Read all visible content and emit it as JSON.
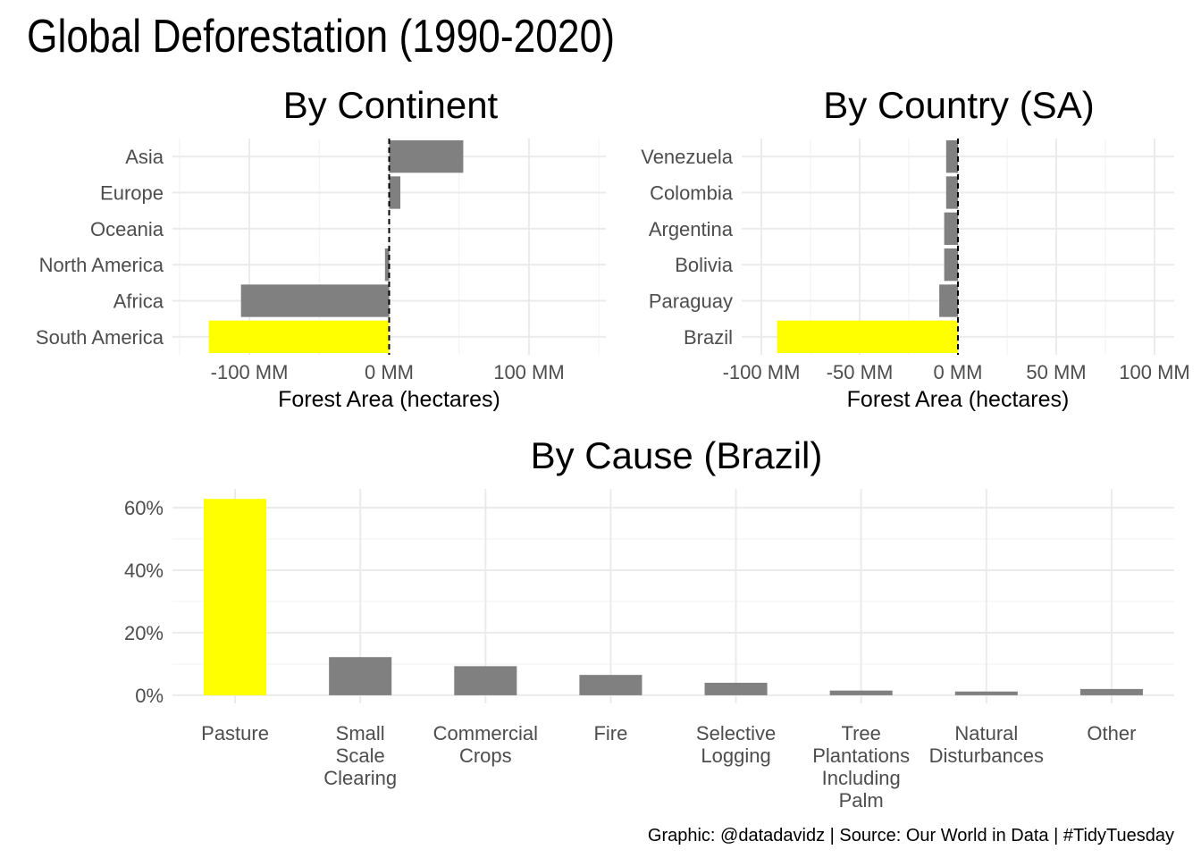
{
  "title": "Global Deforestation (1990-2020)",
  "caption": "Graphic: @datadavidz | Source: Our World in Data | #TidyTuesday",
  "colors": {
    "highlight": "#ffff00",
    "base": "#808080",
    "zero_line": "#000000"
  },
  "chart_data": [
    {
      "type": "bar",
      "orientation": "horizontal",
      "title": "By Continent",
      "xlabel": "Forest Area (hectares)",
      "ylabel": "",
      "xlim": [
        -155,
        155
      ],
      "xticks": [
        {
          "value": -100,
          "label": "-100 MM"
        },
        {
          "value": 0,
          "label": "0 MM"
        },
        {
          "value": 100,
          "label": "100 MM"
        }
      ],
      "categories": [
        "South America",
        "Africa",
        "North America",
        "Oceania",
        "Europe",
        "Asia"
      ],
      "values": [
        -129,
        -106,
        -3,
        0,
        8,
        53
      ],
      "highlight": [
        "South America"
      ],
      "zero_line": true,
      "grid": true
    },
    {
      "type": "bar",
      "orientation": "horizontal",
      "title": "By Country (SA)",
      "xlabel": "Forest Area (hectares)",
      "ylabel": "",
      "xlim": [
        -110,
        110
      ],
      "xticks": [
        {
          "value": -100,
          "label": "-100 MM"
        },
        {
          "value": -50,
          "label": "-50 MM"
        },
        {
          "value": 0,
          "label": "0 MM"
        },
        {
          "value": 50,
          "label": "50 MM"
        },
        {
          "value": 100,
          "label": "100 MM"
        }
      ],
      "categories": [
        "Brazil",
        "Paraguay",
        "Bolivia",
        "Argentina",
        "Colombia",
        "Venezuela"
      ],
      "values": [
        -92,
        -9.5,
        -7,
        -7,
        -6,
        -6
      ],
      "highlight": [
        "Brazil"
      ],
      "zero_line": true,
      "grid": true
    },
    {
      "type": "bar",
      "orientation": "vertical",
      "title": "By Cause (Brazil)",
      "xlabel": "",
      "ylabel": "",
      "ylim": [
        -2.6,
        66
      ],
      "yticks": [
        {
          "value": 0,
          "label": "0%"
        },
        {
          "value": 20,
          "label": "20%"
        },
        {
          "value": 40,
          "label": "40%"
        },
        {
          "value": 60,
          "label": "60%"
        }
      ],
      "categories": [
        "Pasture",
        "Small\nScale\nClearing",
        "Commercial\nCrops",
        "Fire",
        "Selective\nLogging",
        "Tree\nPlantations\nIncluding\nPalm",
        "Natural\nDisturbances",
        "Other"
      ],
      "values": [
        62.8,
        12.2,
        9.3,
        6.5,
        4,
        1.5,
        1.2,
        2
      ],
      "highlight": [
        "Pasture"
      ],
      "grid": true
    }
  ]
}
